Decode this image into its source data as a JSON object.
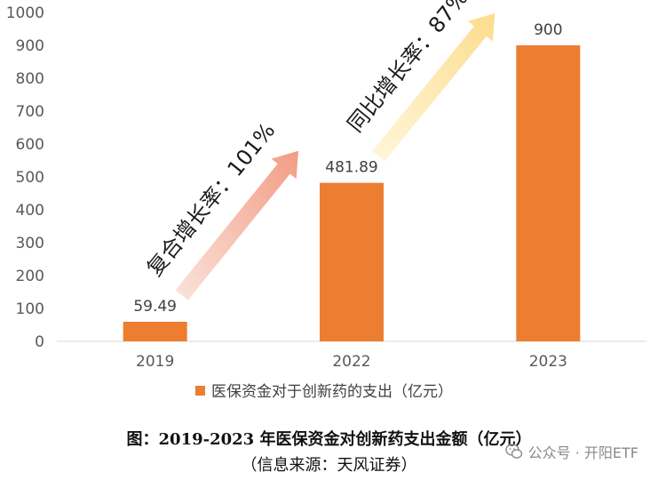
{
  "chart_data": {
    "type": "bar",
    "categories": [
      "2019",
      "2022",
      "2023"
    ],
    "series": [
      {
        "name": "医保资金对于创新药的支出（亿元）",
        "values": [
          59.49,
          481.89,
          900
        ]
      }
    ],
    "data_labels": [
      "59.49",
      "481.89",
      "900"
    ],
    "yticks": [
      "0",
      "100",
      "200",
      "300",
      "400",
      "500",
      "600",
      "700",
      "800",
      "900",
      "1000"
    ],
    "ylim": [
      0,
      1000
    ],
    "grid": false,
    "legend_position": "bottom",
    "bar_color": "#ED7D31",
    "annotations": [
      {
        "text": "复合增长率：101%",
        "from": "2019",
        "to": "2022",
        "color": "#F4A18B"
      },
      {
        "text": "同比增长率：87%",
        "from": "2022",
        "to": "2023",
        "color": "#FCE3A0"
      }
    ]
  },
  "caption": {
    "title": "图：2019-2023 年医保资金对创新药支出金额（亿元）",
    "source": "（信息来源：天风证券）"
  },
  "watermark": {
    "text": "公众号 · 开阳ETF",
    "icon": "wechat-icon"
  }
}
